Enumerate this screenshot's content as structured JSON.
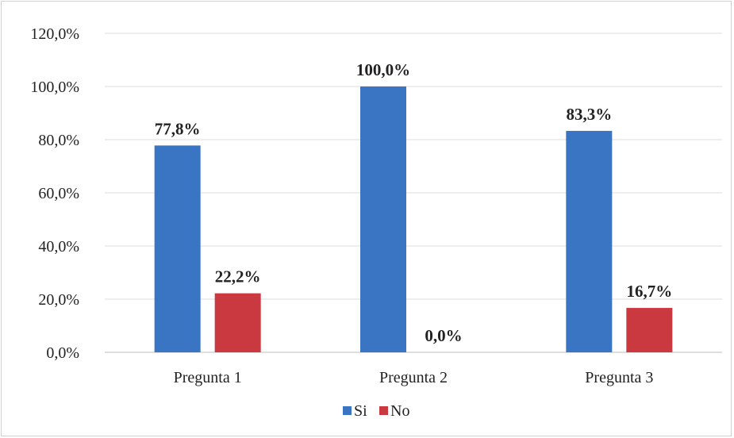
{
  "chart_data": {
    "type": "bar",
    "title": "",
    "xlabel": "",
    "ylabel": "",
    "categories": [
      "Pregunta 1",
      "Pregunta 2",
      "Pregunta 3"
    ],
    "series": [
      {
        "name": "Si",
        "color": "#3A75C4",
        "values": [
          77.8,
          100.0,
          83.3
        ],
        "labels": [
          "77,8%",
          "100,0%",
          "83,3%"
        ]
      },
      {
        "name": "No",
        "color": "#C9393F",
        "values": [
          22.2,
          0.0,
          16.7
        ],
        "labels": [
          "22,2%",
          "0,0%",
          "16,7%"
        ]
      }
    ],
    "ylim": [
      0,
      120
    ],
    "yticks": [
      0,
      20,
      40,
      60,
      80,
      100,
      120
    ],
    "ytick_labels": [
      "0,0%",
      "20,0%",
      "40,0%",
      "60,0%",
      "80,0%",
      "100,0%",
      "120,0%"
    ],
    "grid": true,
    "legend_position": "bottom"
  }
}
